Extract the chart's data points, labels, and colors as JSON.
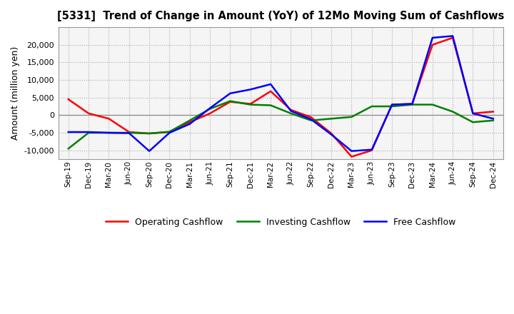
{
  "title": "[5331]  Trend of Change in Amount (YoY) of 12Mo Moving Sum of Cashflows",
  "ylabel": "Amount (million yen)",
  "background_color": "#ffffff",
  "plot_bg_color": "#f5f5f5",
  "xlabels": [
    "Sep-19",
    "Dec-19",
    "Mar-20",
    "Jun-20",
    "Sep-20",
    "Dec-20",
    "Mar-21",
    "Jun-21",
    "Sep-21",
    "Dec-21",
    "Mar-22",
    "Jun-22",
    "Sep-22",
    "Dec-22",
    "Mar-23",
    "Jun-23",
    "Sep-23",
    "Dec-23",
    "Mar-24",
    "Jun-24",
    "Sep-24",
    "Dec-24"
  ],
  "operating": [
    4500,
    500,
    -1000,
    -4800,
    -5200,
    -4800,
    -2000,
    500,
    3800,
    3200,
    6800,
    1500,
    -600,
    -5200,
    -11800,
    -10000,
    3000,
    3200,
    20000,
    22000,
    500,
    1000
  ],
  "investing": [
    -9500,
    -5000,
    -5000,
    -5000,
    -5200,
    -4700,
    -1500,
    1800,
    4000,
    3000,
    2800,
    500,
    -1500,
    -1000,
    -500,
    2500,
    2500,
    3000,
    3000,
    1000,
    -2000,
    -1500
  ],
  "free": [
    -4800,
    -4800,
    -5000,
    -5100,
    -10200,
    -5000,
    -2500,
    2000,
    6200,
    7300,
    8800,
    1200,
    -1200,
    -5500,
    -10200,
    -9800,
    3000,
    3200,
    22000,
    22500,
    500,
    -1000
  ],
  "ylim": [
    -12500,
    25000
  ],
  "yticks": [
    -10000,
    -5000,
    0,
    5000,
    10000,
    15000,
    20000
  ],
  "line_colors": {
    "operating": "#ff0000",
    "investing": "#008000",
    "free": "#0000ff"
  },
  "legend_labels": [
    "Operating Cashflow",
    "Investing Cashflow",
    "Free Cashflow"
  ]
}
